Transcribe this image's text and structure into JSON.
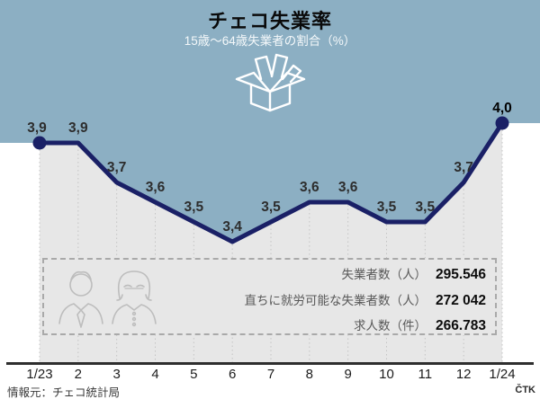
{
  "header": {
    "title": "チェコ失業率",
    "subtitle": "15歳～64歳失業者の割合（%）"
  },
  "chart_data": {
    "type": "line",
    "title": "チェコ失業率",
    "subtitle": "15歳～64歳失業者の割合（%）",
    "categories": [
      "1/23",
      "2",
      "3",
      "4",
      "5",
      "6",
      "7",
      "8",
      "9",
      "10",
      "11",
      "12",
      "1/24"
    ],
    "values": [
      3.9,
      3.9,
      3.7,
      3.6,
      3.5,
      3.4,
      3.5,
      3.6,
      3.6,
      3.5,
      3.5,
      3.7,
      4.0
    ],
    "value_labels": [
      "3,9",
      "3,9",
      "3,7",
      "3,6",
      "3,5",
      "3,4",
      "3,5",
      "3,6",
      "3,6",
      "3,5",
      "3,5",
      "3,7",
      "4,0"
    ],
    "xlabel": "",
    "ylabel": "",
    "ylim": [
      3.3,
      4.05
    ],
    "grid": "dotted-vertical",
    "legend": "none",
    "markers": "first-and-last-point",
    "colors": {
      "line": "#1a2066",
      "area_above": "#8cafc3",
      "area_below": "#e7e7e7",
      "axis": "#2e2e2e",
      "gridline": "#c4c4c4",
      "value_label": "#2d2d2d",
      "tick_label": "#1c1c1c"
    }
  },
  "info_box": {
    "rows": [
      {
        "label": "失業者数（人）",
        "value": "295.546"
      },
      {
        "label": "直ちに就労可能な失業者数（人）",
        "value": "272 042"
      },
      {
        "label": "求人数（件）",
        "value": "266.783"
      }
    ]
  },
  "footer": {
    "source": "情報元：チェコ統計局",
    "credit": "ČTK"
  }
}
